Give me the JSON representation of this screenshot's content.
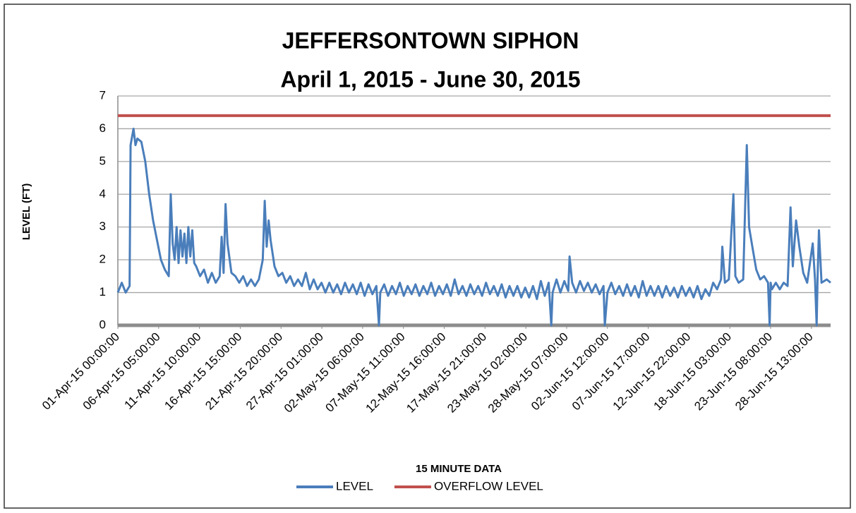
{
  "chart_data": {
    "type": "line",
    "title": "JEFFERSONTOWN SIPHON",
    "subtitle": "April 1, 2015 - June 30, 2015",
    "xlabel": "15 MINUTE DATA",
    "ylabel": "LEVEL (FT)",
    "ylim": [
      0,
      7
    ],
    "yticks": [
      0,
      1,
      2,
      3,
      4,
      5,
      6,
      7
    ],
    "xlim": [
      "01-Apr-15 00:00:00",
      "30-Jun-15 23:45:00"
    ],
    "xticks": [
      "01-Apr-15 00:00:00",
      "06-Apr-15 05:00:00",
      "11-Apr-15 10:00:00",
      "16-Apr-15 15:00:00",
      "21-Apr-15 20:00:00",
      "27-Apr-15 01:00:00",
      "02-May-15 06:00:00",
      "07-May-15 11:00:00",
      "12-May-15 16:00:00",
      "17-May-15 21:00:00",
      "23-May-15 02:00:00",
      "28-May-15 07:00:00",
      "02-Jun-15 12:00:00",
      "07-Jun-15 17:00:00",
      "12-Jun-15 22:00:00",
      "18-Jun-15 03:00:00",
      "23-Jun-15 08:00:00",
      "28-Jun-15 13:00:00"
    ],
    "grid": true,
    "legend": "bottom",
    "series": [
      {
        "name": "LEVEL",
        "color": "#4a7ebb",
        "x": [
          "01-Apr-15 00:00:00",
          "01-Apr-15 12:00:00",
          "02-Apr-15 00:00:00",
          "02-Apr-15 12:00:00",
          "02-Apr-15 15:00:00",
          "03-Apr-15 00:00:00",
          "03-Apr-15 06:00:00",
          "03-Apr-15 12:00:00",
          "04-Apr-15 00:00:00",
          "04-Apr-15 12:00:00",
          "05-Apr-15 00:00:00",
          "05-Apr-15 12:00:00",
          "06-Apr-15 00:00:00",
          "06-Apr-15 12:00:00",
          "07-Apr-15 00:00:00",
          "07-Apr-15 12:00:00",
          "07-Apr-15 18:00:00",
          "08-Apr-15 00:00:00",
          "08-Apr-15 06:00:00",
          "08-Apr-15 12:00:00",
          "08-Apr-15 18:00:00",
          "09-Apr-15 00:00:00",
          "09-Apr-15 06:00:00",
          "09-Apr-15 12:00:00",
          "09-Apr-15 18:00:00",
          "10-Apr-15 00:00:00",
          "10-Apr-15 06:00:00",
          "10-Apr-15 12:00:00",
          "10-Apr-15 18:00:00",
          "11-Apr-15 00:00:00",
          "11-Apr-15 12:00:00",
          "12-Apr-15 00:00:00",
          "12-Apr-15 12:00:00",
          "13-Apr-15 00:00:00",
          "13-Apr-15 12:00:00",
          "14-Apr-15 00:00:00",
          "14-Apr-15 06:00:00",
          "14-Apr-15 12:00:00",
          "14-Apr-15 18:00:00",
          "15-Apr-15 00:00:00",
          "15-Apr-15 12:00:00",
          "16-Apr-15 00:00:00",
          "16-Apr-15 12:00:00",
          "17-Apr-15 00:00:00",
          "17-Apr-15 12:00:00",
          "18-Apr-15 00:00:00",
          "18-Apr-15 12:00:00",
          "19-Apr-15 00:00:00",
          "19-Apr-15 12:00:00",
          "19-Apr-15 18:00:00",
          "20-Apr-15 00:00:00",
          "20-Apr-15 06:00:00",
          "20-Apr-15 12:00:00",
          "21-Apr-15 00:00:00",
          "21-Apr-15 12:00:00",
          "22-Apr-15 00:00:00",
          "22-Apr-15 12:00:00",
          "23-Apr-15 00:00:00",
          "23-Apr-15 12:00:00",
          "24-Apr-15 00:00:00",
          "24-Apr-15 12:00:00",
          "25-Apr-15 00:00:00",
          "25-Apr-15 12:00:00",
          "26-Apr-15 00:00:00",
          "26-Apr-15 12:00:00",
          "27-Apr-15 00:00:00",
          "27-Apr-15 12:00:00",
          "28-Apr-15 00:00:00",
          "28-Apr-15 12:00:00",
          "29-Apr-15 00:00:00",
          "29-Apr-15 12:00:00",
          "30-Apr-15 00:00:00",
          "30-Apr-15 12:00:00",
          "01-May-15 00:00:00",
          "01-May-15 12:00:00",
          "02-May-15 00:00:00",
          "02-May-15 12:00:00",
          "03-May-15 00:00:00",
          "03-May-15 12:00:00",
          "04-May-15 00:00:00",
          "04-May-15 08:00:00",
          "04-May-15 12:00:00",
          "05-May-15 00:00:00",
          "05-May-15 12:00:00",
          "06-May-15 00:00:00",
          "06-May-15 12:00:00",
          "07-May-15 00:00:00",
          "07-May-15 12:00:00",
          "08-May-15 00:00:00",
          "08-May-15 12:00:00",
          "09-May-15 00:00:00",
          "09-May-15 12:00:00",
          "10-May-15 00:00:00",
          "10-May-15 12:00:00",
          "11-May-15 00:00:00",
          "11-May-15 12:00:00",
          "12-May-15 00:00:00",
          "12-May-15 12:00:00",
          "13-May-15 00:00:00",
          "13-May-15 12:00:00",
          "14-May-15 00:00:00",
          "14-May-15 12:00:00",
          "15-May-15 00:00:00",
          "15-May-15 12:00:00",
          "16-May-15 00:00:00",
          "16-May-15 12:00:00",
          "17-May-15 00:00:00",
          "17-May-15 12:00:00",
          "18-May-15 00:00:00",
          "18-May-15 12:00:00",
          "19-May-15 00:00:00",
          "19-May-15 12:00:00",
          "20-May-15 00:00:00",
          "20-May-15 12:00:00",
          "21-May-15 00:00:00",
          "21-May-15 12:00:00",
          "22-May-15 00:00:00",
          "22-May-15 12:00:00",
          "23-May-15 00:00:00",
          "23-May-15 12:00:00",
          "24-May-15 00:00:00",
          "24-May-15 12:00:00",
          "25-May-15 00:00:00",
          "25-May-15 12:00:00",
          "26-May-15 00:00:00",
          "26-May-15 08:00:00",
          "26-May-15 12:00:00",
          "27-May-15 00:00:00",
          "27-May-15 12:00:00",
          "28-May-15 00:00:00",
          "28-May-15 12:00:00",
          "28-May-15 16:00:00",
          "29-May-15 00:00:00",
          "29-May-15 12:00:00",
          "30-May-15 00:00:00",
          "30-May-15 12:00:00",
          "31-May-15 00:00:00",
          "31-May-15 12:00:00",
          "01-Jun-15 00:00:00",
          "01-Jun-15 12:00:00",
          "02-Jun-15 00:00:00",
          "02-Jun-15 04:00:00",
          "02-Jun-15 12:00:00",
          "03-Jun-15 00:00:00",
          "03-Jun-15 12:00:00",
          "04-Jun-15 00:00:00",
          "04-Jun-15 12:00:00",
          "05-Jun-15 00:00:00",
          "05-Jun-15 12:00:00",
          "06-Jun-15 00:00:00",
          "06-Jun-15 12:00:00",
          "07-Jun-15 00:00:00",
          "07-Jun-15 12:00:00",
          "08-Jun-15 00:00:00",
          "08-Jun-15 12:00:00",
          "09-Jun-15 00:00:00",
          "09-Jun-15 12:00:00",
          "10-Jun-15 00:00:00",
          "10-Jun-15 12:00:00",
          "11-Jun-15 00:00:00",
          "11-Jun-15 12:00:00",
          "12-Jun-15 00:00:00",
          "12-Jun-15 12:00:00",
          "13-Jun-15 00:00:00",
          "13-Jun-15 12:00:00",
          "14-Jun-15 00:00:00",
          "14-Jun-15 12:00:00",
          "15-Jun-15 00:00:00",
          "15-Jun-15 12:00:00",
          "16-Jun-15 00:00:00",
          "16-Jun-15 12:00:00",
          "17-Jun-15 00:00:00",
          "17-Jun-15 04:00:00",
          "17-Jun-15 12:00:00",
          "18-Jun-15 00:00:00",
          "18-Jun-15 14:00:00",
          "18-Jun-15 20:00:00",
          "19-Jun-15 06:00:00",
          "19-Jun-15 20:00:00",
          "20-Jun-15 07:00:00",
          "20-Jun-15 14:00:00",
          "21-Jun-15 00:00:00",
          "21-Jun-15 12:00:00",
          "22-Jun-15 00:00:00",
          "22-Jun-15 12:00:00",
          "23-Jun-15 00:00:00",
          "23-Jun-15 05:00:00",
          "23-Jun-15 08:00:00",
          "23-Jun-15 12:00:00",
          "24-Jun-15 00:00:00",
          "24-Jun-15 12:00:00",
          "25-Jun-15 00:00:00",
          "25-Jun-15 12:00:00",
          "25-Jun-15 21:00:00",
          "26-Jun-15 04:00:00",
          "26-Jun-15 14:00:00",
          "27-Jun-15 00:00:00",
          "27-Jun-15 12:00:00",
          "28-Jun-15 00:00:00",
          "28-Jun-15 17:00:00",
          "29-Jun-15 00:00:00",
          "29-Jun-15 05:00:00",
          "29-Jun-15 08:00:00",
          "29-Jun-15 12:00:00",
          "29-Jun-15 20:00:00",
          "30-Jun-15 12:00:00",
          "30-Jun-15 23:45:00"
        ],
        "values": [
          1.0,
          1.3,
          1.0,
          1.2,
          5.5,
          6.0,
          5.5,
          5.7,
          5.6,
          5.0,
          4.0,
          3.2,
          2.6,
          2.0,
          1.7,
          1.5,
          4.0,
          2.5,
          2.0,
          3.0,
          1.9,
          2.9,
          2.1,
          2.8,
          1.9,
          3.0,
          2.1,
          2.9,
          1.9,
          1.8,
          1.5,
          1.7,
          1.3,
          1.6,
          1.3,
          1.5,
          2.7,
          1.6,
          3.7,
          2.5,
          1.6,
          1.5,
          1.3,
          1.5,
          1.2,
          1.4,
          1.2,
          1.4,
          2.0,
          3.8,
          2.4,
          3.2,
          2.6,
          1.8,
          1.5,
          1.6,
          1.3,
          1.5,
          1.2,
          1.4,
          1.2,
          1.6,
          1.1,
          1.4,
          1.1,
          1.3,
          1.0,
          1.3,
          1.0,
          1.25,
          0.95,
          1.3,
          1.0,
          1.25,
          0.95,
          1.3,
          0.9,
          1.25,
          0.95,
          1.2,
          0,
          1.0,
          1.25,
          0.9,
          1.2,
          0.95,
          1.3,
          0.9,
          1.2,
          0.95,
          1.25,
          0.9,
          1.2,
          0.95,
          1.3,
          0.9,
          1.2,
          0.95,
          1.25,
          0.9,
          1.4,
          0.95,
          1.2,
          0.9,
          1.25,
          0.95,
          1.2,
          0.9,
          1.3,
          0.95,
          1.2,
          0.9,
          1.25,
          0.85,
          1.2,
          0.9,
          1.2,
          0.85,
          1.15,
          0.85,
          1.2,
          0.8,
          1.35,
          0.9,
          1.3,
          0,
          1.0,
          1.4,
          1.0,
          1.35,
          1.05,
          2.1,
          1.3,
          1.0,
          1.35,
          1.05,
          1.3,
          1.0,
          1.25,
          0.95,
          1.2,
          0,
          1.0,
          1.3,
          0.95,
          1.2,
          0.9,
          1.25,
          0.9,
          1.2,
          0.85,
          1.35,
          0.9,
          1.2,
          0.9,
          1.2,
          0.85,
          1.2,
          0.9,
          1.15,
          0.85,
          1.2,
          0.9,
          1.15,
          0.85,
          1.2,
          0.8,
          1.1,
          0.9,
          1.3,
          1.1,
          1.4,
          2.4,
          1.3,
          1.4,
          4.0,
          1.5,
          1.3,
          1.4,
          5.5,
          3.0,
          2.4,
          1.7,
          1.4,
          1.5,
          1.3,
          0,
          1.3,
          1.1,
          1.3,
          1.1,
          1.3,
          1.2,
          3.6,
          1.8,
          3.2,
          2.4,
          1.6,
          1.3,
          2.5,
          1.4,
          0,
          1.5,
          2.9,
          1.3,
          1.4,
          1.3
        ]
      },
      {
        "name": "OVERFLOW LEVEL",
        "color": "#c0504d",
        "x": [
          "01-Apr-15 00:00:00",
          "30-Jun-15 23:45:00"
        ],
        "values": [
          6.4,
          6.4
        ]
      }
    ]
  }
}
